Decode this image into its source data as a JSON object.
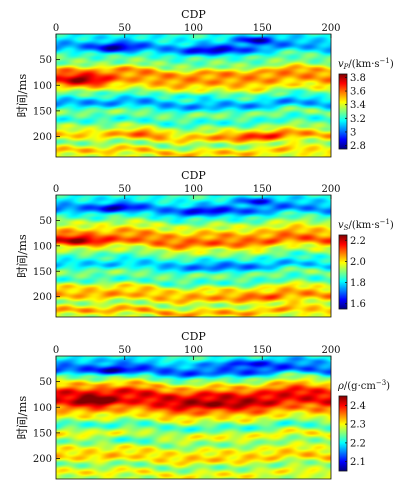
{
  "chart_data": [
    {
      "type": "heatmap",
      "property": "vP",
      "title": "",
      "xlabel": "CDP",
      "ylabel": "时间/ms",
      "xlim": [
        0,
        200
      ],
      "ylim": [
        0,
        240
      ],
      "y_inverted": true,
      "xticks": [
        0,
        50,
        100,
        150,
        200
      ],
      "yticks": [
        50,
        100,
        150,
        200
      ],
      "colorbar": {
        "label": "vP/(km·s⁻¹)",
        "label_main": "v",
        "label_sub": "P",
        "label_unit": "/(km·s",
        "label_exp": "−1",
        "label_close": ")",
        "range": [
          2.75,
          3.85
        ],
        "ticks": [
          2.8,
          3.0,
          3.2,
          3.4,
          3.6,
          3.8
        ],
        "tick_labels": [
          "2.8",
          "3",
          "3.2",
          "3.4",
          "3.6",
          "3.8"
        ],
        "colormap": "jet"
      },
      "layers": [
        {
          "t": 0,
          "v": 3.2
        },
        {
          "t": 12,
          "v": 3.15
        },
        {
          "t": 28,
          "v": 3.05
        },
        {
          "t": 45,
          "v": 3.25
        },
        {
          "t": 60,
          "v": 3.3
        },
        {
          "t": 75,
          "v": 3.55
        },
        {
          "t": 90,
          "v": 3.55
        },
        {
          "t": 105,
          "v": 3.45
        },
        {
          "t": 120,
          "v": 3.25
        },
        {
          "t": 138,
          "v": 3.05
        },
        {
          "t": 155,
          "v": 3.3
        },
        {
          "t": 170,
          "v": 3.2
        },
        {
          "t": 185,
          "v": 3.35
        },
        {
          "t": 200,
          "v": 3.5
        },
        {
          "t": 215,
          "v": 3.3
        },
        {
          "t": 230,
          "v": 3.5
        },
        {
          "t": 240,
          "v": 3.4
        }
      ],
      "anomalies": [
        {
          "cdp": 18,
          "t": 90,
          "dv": 0.3,
          "sx": 20,
          "st": 12
        },
        {
          "cdp": 45,
          "t": 28,
          "dv": -0.3,
          "sx": 16,
          "st": 10
        },
        {
          "cdp": 115,
          "t": 32,
          "dv": -0.25,
          "sx": 20,
          "st": 9
        },
        {
          "cdp": 145,
          "t": 12,
          "dv": -0.35,
          "sx": 15,
          "st": 8
        },
        {
          "cdp": 150,
          "t": 200,
          "dv": 0.2,
          "sx": 30,
          "st": 12
        },
        {
          "cdp": 65,
          "t": 195,
          "dv": 0.15,
          "sx": 15,
          "st": 10
        },
        {
          "cdp": 95,
          "t": 120,
          "dv": -0.1,
          "sx": 30,
          "st": 10
        }
      ]
    },
    {
      "type": "heatmap",
      "property": "vS",
      "title": "",
      "xlabel": "CDP",
      "ylabel": "时间/ms",
      "xlim": [
        0,
        200
      ],
      "ylim": [
        0,
        240
      ],
      "y_inverted": true,
      "xticks": [
        0,
        50,
        100,
        150,
        200
      ],
      "yticks": [
        50,
        100,
        150,
        200
      ],
      "colorbar": {
        "label": "vS/(km·s⁻¹)",
        "label_main": "v",
        "label_sub": "S",
        "label_unit": "/(km·s",
        "label_exp": "−1",
        "label_close": ")",
        "range": [
          1.55,
          2.25
        ],
        "ticks": [
          1.6,
          1.8,
          2.0,
          2.2
        ],
        "tick_labels": [
          "1.6",
          "1.8",
          "2.0",
          "2.2"
        ],
        "colormap": "jet"
      },
      "layers": [
        {
          "t": 0,
          "v": 1.85
        },
        {
          "t": 15,
          "v": 1.8
        },
        {
          "t": 30,
          "v": 1.72
        },
        {
          "t": 45,
          "v": 1.85
        },
        {
          "t": 60,
          "v": 1.95
        },
        {
          "t": 78,
          "v": 2.05
        },
        {
          "t": 92,
          "v": 2.1
        },
        {
          "t": 108,
          "v": 1.95
        },
        {
          "t": 125,
          "v": 1.85
        },
        {
          "t": 140,
          "v": 1.78
        },
        {
          "t": 155,
          "v": 1.9
        },
        {
          "t": 170,
          "v": 1.85
        },
        {
          "t": 185,
          "v": 2.0
        },
        {
          "t": 200,
          "v": 2.05
        },
        {
          "t": 215,
          "v": 1.92
        },
        {
          "t": 230,
          "v": 2.05
        },
        {
          "t": 240,
          "v": 1.95
        }
      ],
      "anomalies": [
        {
          "cdp": 15,
          "t": 90,
          "dv": 0.15,
          "sx": 18,
          "st": 10
        },
        {
          "cdp": 45,
          "t": 25,
          "dv": -0.15,
          "sx": 15,
          "st": 8
        },
        {
          "cdp": 110,
          "t": 30,
          "dv": -0.12,
          "sx": 20,
          "st": 8
        },
        {
          "cdp": 145,
          "t": 12,
          "dv": -0.18,
          "sx": 15,
          "st": 8
        },
        {
          "cdp": 120,
          "t": 140,
          "dv": -0.08,
          "sx": 40,
          "st": 12
        },
        {
          "cdp": 160,
          "t": 205,
          "dv": 0.08,
          "sx": 30,
          "st": 10
        }
      ]
    },
    {
      "type": "heatmap",
      "property": "rho",
      "title": "",
      "xlabel": "CDP",
      "ylabel": "时间/ms",
      "xlim": [
        0,
        200
      ],
      "ylim": [
        0,
        240
      ],
      "y_inverted": true,
      "xticks": [
        0,
        50,
        100,
        150,
        200
      ],
      "yticks": [
        50,
        100,
        150,
        200
      ],
      "colorbar": {
        "label": "ρ/(g·cm⁻³)",
        "label_main": "ρ",
        "label_sub": "",
        "label_unit": "/(g·cm",
        "label_exp": "−3",
        "label_close": ")",
        "range": [
          2.05,
          2.45
        ],
        "ticks": [
          2.1,
          2.2,
          2.3,
          2.4
        ],
        "tick_labels": [
          "2.1",
          "2.2",
          "2.3",
          "2.4"
        ],
        "colormap": "jet"
      },
      "layers": [
        {
          "t": 0,
          "v": 2.22
        },
        {
          "t": 15,
          "v": 2.17
        },
        {
          "t": 30,
          "v": 2.13
        },
        {
          "t": 45,
          "v": 2.25
        },
        {
          "t": 60,
          "v": 2.33
        },
        {
          "t": 75,
          "v": 2.4
        },
        {
          "t": 90,
          "v": 2.4
        },
        {
          "t": 105,
          "v": 2.35
        },
        {
          "t": 120,
          "v": 2.3
        },
        {
          "t": 138,
          "v": 2.22
        },
        {
          "t": 155,
          "v": 2.3
        },
        {
          "t": 170,
          "v": 2.25
        },
        {
          "t": 185,
          "v": 2.3
        },
        {
          "t": 200,
          "v": 2.32
        },
        {
          "t": 215,
          "v": 2.25
        },
        {
          "t": 230,
          "v": 2.3
        },
        {
          "t": 240,
          "v": 2.27
        }
      ],
      "anomalies": [
        {
          "cdp": 28,
          "t": 88,
          "dv": 0.08,
          "sx": 15,
          "st": 10
        },
        {
          "cdp": 45,
          "t": 30,
          "dv": -0.08,
          "sx": 15,
          "st": 8
        },
        {
          "cdp": 140,
          "t": 15,
          "dv": -0.08,
          "sx": 20,
          "st": 8
        },
        {
          "cdp": 120,
          "t": 95,
          "dv": 0.04,
          "sx": 40,
          "st": 12
        },
        {
          "cdp": 60,
          "t": 160,
          "dv": -0.04,
          "sx": 25,
          "st": 10
        }
      ]
    }
  ]
}
